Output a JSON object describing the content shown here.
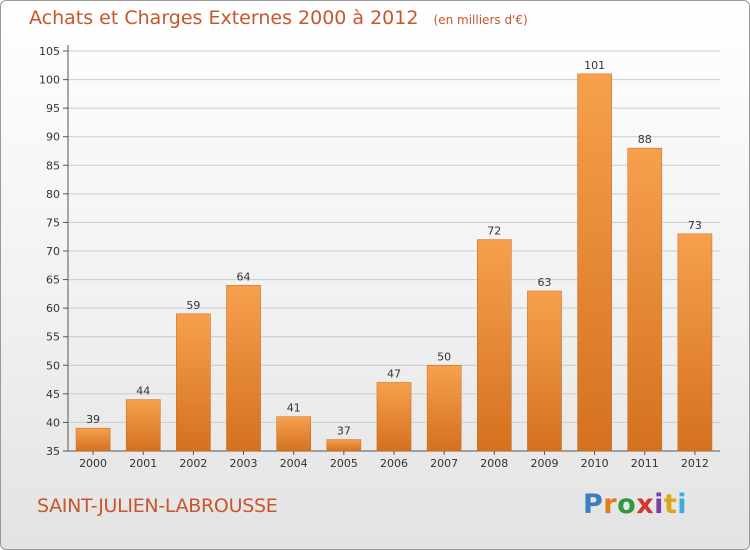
{
  "title": "Achats et Charges Externes 2000 à 2012",
  "subtitle": "(en milliers d'€)",
  "commune": "SAINT-JULIEN-LABROUSSE",
  "logo": {
    "text": "Proxiti",
    "colors": [
      "#3a7fc1",
      "#e07b1c",
      "#2e9a3e",
      "#d2362f",
      "#7d3fa0",
      "#e0a41c",
      "#3aaed8"
    ]
  },
  "colors": {
    "bar_top": "#f6a04e",
    "bar_bottom": "#d4711f",
    "title": "#c8562c",
    "grid": "#cccccc"
  },
  "chart_data": {
    "type": "bar",
    "categories": [
      "2000",
      "2001",
      "2002",
      "2003",
      "2004",
      "2005",
      "2006",
      "2007",
      "2008",
      "2009",
      "2010",
      "2011",
      "2012"
    ],
    "values": [
      39,
      44,
      59,
      64,
      41,
      37,
      47,
      50,
      72,
      63,
      101,
      88,
      73
    ],
    "ylim": [
      35,
      105
    ],
    "yticks": [
      35,
      40,
      45,
      50,
      55,
      60,
      65,
      70,
      75,
      80,
      85,
      90,
      95,
      100,
      105
    ],
    "grid": true,
    "legend": "none"
  }
}
